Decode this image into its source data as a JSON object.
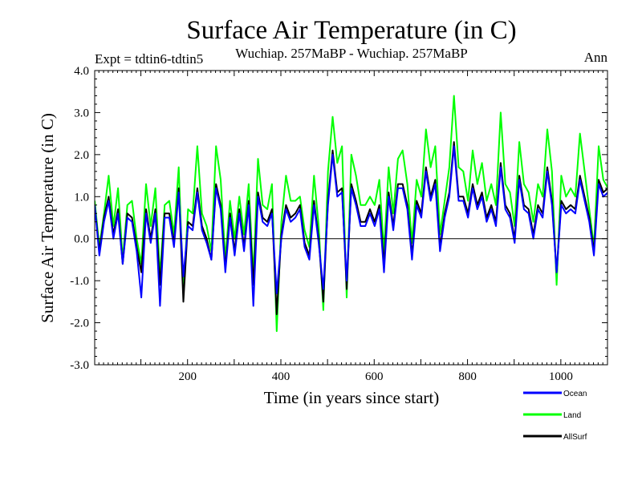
{
  "chart_data": {
    "type": "line",
    "title": "Surface Air Temperature (in C)",
    "subtitle_left": "Expt = tdtin6-tdtin5",
    "subtitle_center": "Wuchiap. 257MaBP - Wuchiap. 257MaBP",
    "subtitle_right": "Ann",
    "xlabel": "Time (in years since start)",
    "ylabel": "Surface Air Temperature (in C)",
    "xlim": [
      1,
      1100
    ],
    "ylim": [
      -3.0,
      4.0
    ],
    "grid": false,
    "zero_line": 0.0,
    "x_ticks": [
      200,
      400,
      600,
      800,
      1000
    ],
    "x_tick_labels": [
      "200",
      "400",
      "600",
      "800",
      "1000"
    ],
    "y_ticks": [
      -3.0,
      -2.0,
      -1.0,
      0.0,
      1.0,
      2.0,
      3.0,
      4.0
    ],
    "y_tick_labels": [
      "-3.0",
      "-2.0",
      "-1.0",
      "0.0",
      "1.0",
      "2.0",
      "3.0",
      "4.0"
    ],
    "legend_position": "bottom-right, below plot",
    "x_step": 10,
    "x_start": 1,
    "series": [
      {
        "name": "Land",
        "label": "Land",
        "color": "#00ff00",
        "values": [
          0.9,
          -0.2,
          0.6,
          1.5,
          0.3,
          1.2,
          -0.5,
          0.8,
          0.9,
          0.0,
          -0.6,
          1.3,
          0.3,
          1.2,
          -0.9,
          0.8,
          0.9,
          0.1,
          1.7,
          -1.3,
          0.7,
          0.6,
          2.2,
          0.6,
          0.3,
          -0.3,
          2.2,
          1.4,
          -0.5,
          0.9,
          0.0,
          1.0,
          0.1,
          1.3,
          -0.9,
          1.9,
          0.8,
          0.7,
          1.3,
          -2.2,
          0.4,
          1.5,
          0.9,
          0.9,
          1.0,
          0.2,
          -0.2,
          1.5,
          0.3,
          -1.7,
          1.6,
          2.9,
          1.8,
          2.2,
          -1.4,
          2.0,
          1.5,
          0.8,
          0.8,
          1.0,
          0.8,
          1.4,
          -0.3,
          1.7,
          0.6,
          1.9,
          2.1,
          1.3,
          -0.1,
          1.4,
          1.0,
          2.6,
          1.7,
          2.2,
          0.1,
          0.9,
          1.7,
          3.4,
          1.7,
          1.6,
          0.9,
          2.1,
          1.3,
          1.8,
          0.9,
          1.3,
          0.8,
          3.0,
          1.3,
          1.1,
          0.3,
          2.3,
          1.3,
          1.1,
          0.4,
          1.3,
          1.0,
          2.6,
          1.6,
          -1.1,
          1.5,
          1.0,
          1.2,
          1.0,
          2.5,
          1.6,
          0.7,
          -0.2,
          2.2,
          1.4,
          1.2
        ]
      },
      {
        "name": "AllSurf",
        "label": "AllSurf",
        "color": "#000000",
        "values": [
          0.8,
          -0.3,
          0.5,
          1.0,
          0.1,
          0.7,
          -0.6,
          0.6,
          0.5,
          -0.2,
          -0.8,
          0.7,
          0.0,
          0.7,
          -1.1,
          0.6,
          0.6,
          -0.1,
          1.2,
          -1.5,
          0.4,
          0.3,
          1.2,
          0.3,
          0.0,
          -0.5,
          1.3,
          0.8,
          -0.7,
          0.6,
          -0.3,
          0.7,
          -0.2,
          0.9,
          -1.1,
          1.1,
          0.5,
          0.4,
          0.7,
          -1.8,
          0.1,
          0.8,
          0.5,
          0.6,
          0.8,
          -0.1,
          -0.4,
          0.9,
          0.0,
          -1.5,
          0.9,
          2.1,
          1.1,
          1.2,
          -1.2,
          1.3,
          0.9,
          0.4,
          0.4,
          0.7,
          0.4,
          0.8,
          -0.6,
          1.1,
          0.3,
          1.3,
          1.3,
          0.8,
          -0.4,
          0.9,
          0.6,
          1.7,
          1.0,
          1.4,
          -0.2,
          0.6,
          1.1,
          2.3,
          1.0,
          1.0,
          0.6,
          1.3,
          0.8,
          1.1,
          0.5,
          0.8,
          0.4,
          1.8,
          0.8,
          0.6,
          0.0,
          1.5,
          0.8,
          0.7,
          0.1,
          0.8,
          0.6,
          1.7,
          0.9,
          -0.8,
          0.9,
          0.7,
          0.8,
          0.7,
          1.5,
          1.0,
          0.5,
          -0.3,
          1.4,
          1.1,
          1.2
        ]
      },
      {
        "name": "Ocean",
        "label": "Ocean",
        "color": "#0000ff",
        "values": [
          0.8,
          -0.4,
          0.4,
          0.9,
          0.0,
          0.6,
          -0.6,
          0.5,
          0.4,
          -0.3,
          -1.4,
          0.6,
          -0.1,
          0.6,
          -1.6,
          0.5,
          0.5,
          -0.2,
          1.1,
          -0.9,
          0.3,
          0.2,
          1.1,
          0.2,
          -0.1,
          -0.5,
          1.2,
          0.7,
          -0.8,
          0.5,
          -0.4,
          0.6,
          -0.3,
          0.8,
          -1.6,
          1.0,
          0.4,
          0.3,
          0.6,
          -1.3,
          0.0,
          0.7,
          0.4,
          0.5,
          0.7,
          -0.2,
          -0.5,
          0.8,
          -0.1,
          -1.2,
          0.8,
          2.0,
          1.0,
          1.1,
          -1.0,
          1.2,
          0.8,
          0.3,
          0.3,
          0.6,
          0.3,
          0.7,
          -0.8,
          1.0,
          0.2,
          1.2,
          1.2,
          0.7,
          -0.5,
          0.8,
          0.5,
          1.6,
          0.9,
          1.3,
          -0.3,
          0.5,
          1.0,
          2.2,
          0.9,
          0.9,
          0.5,
          1.2,
          0.7,
          1.0,
          0.4,
          0.7,
          0.3,
          1.7,
          0.7,
          0.5,
          -0.1,
          1.4,
          0.7,
          0.6,
          0.0,
          0.7,
          0.5,
          1.6,
          0.8,
          -0.8,
          0.8,
          0.6,
          0.7,
          0.6,
          1.4,
          0.9,
          0.4,
          -0.4,
          1.3,
          1.0,
          1.1
        ]
      }
    ],
    "legend": [
      {
        "label": "Ocean",
        "color": "#0000ff"
      },
      {
        "label": "Land",
        "color": "#00ff00"
      },
      {
        "label": "AllSurf",
        "color": "#000000"
      }
    ]
  }
}
